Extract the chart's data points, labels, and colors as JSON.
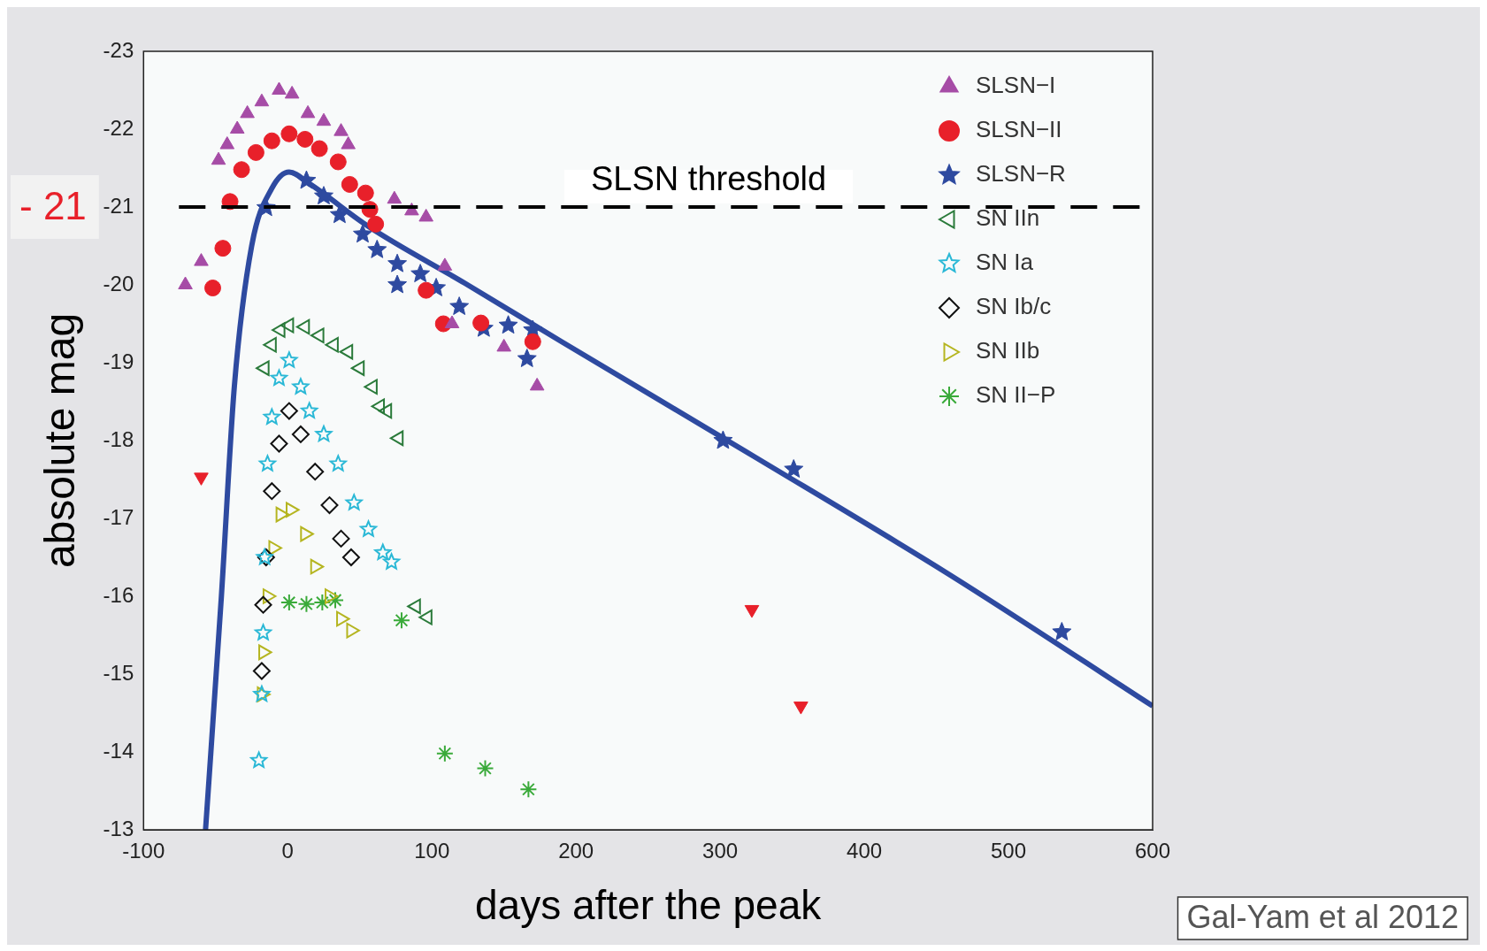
{
  "chart_data": {
    "type": "scatter",
    "xlabel": "days after the peak",
    "ylabel": "absolute mag",
    "xlim": [
      -100,
      600
    ],
    "xticks": [
      -100,
      0,
      100,
      200,
      300,
      400,
      500,
      600
    ],
    "ylim": [
      -13,
      -23
    ],
    "yticks": [
      -23,
      -22,
      -21,
      -20,
      -19,
      -18,
      -17,
      -16,
      -15,
      -14,
      -13
    ],
    "grid": false,
    "legend": "top right",
    "ref_lines": [
      {
        "axis": "y",
        "value": -21,
        "label": "SLSN threshold",
        "color": "#000000",
        "line_style": "dashed"
      }
    ],
    "annotations": [
      "- 21",
      "Gal-Yam et al 2012"
    ],
    "series": [
      {
        "name": "SLSN−I",
        "color": "#a64ca6",
        "marker": "triangle",
        "x": [
          -71,
          -60,
          -48,
          -42,
          -35,
          -28,
          -18,
          -6,
          3,
          14,
          25,
          37,
          42,
          74,
          86,
          96,
          109,
          114,
          150,
          173
        ],
        "values": [
          -20.0,
          -20.3,
          -21.6,
          -21.8,
          -22.0,
          -22.2,
          -22.35,
          -22.5,
          -22.45,
          -22.2,
          -22.1,
          -21.97,
          -21.8,
          -21.1,
          -20.95,
          -20.87,
          -20.24,
          -19.5,
          -19.2,
          -18.7
        ]
      },
      {
        "name": "SLSN−II",
        "color": "#e8202a",
        "marker": "circle",
        "x": [
          -52,
          -45,
          -40,
          -32,
          -22,
          -11,
          1,
          12,
          22,
          35,
          43,
          54,
          57,
          61,
          96,
          108,
          134,
          170
        ],
        "values": [
          -19.96,
          -20.47,
          -21.07,
          -21.48,
          -21.7,
          -21.85,
          -21.94,
          -21.87,
          -21.75,
          -21.58,
          -21.29,
          -21.18,
          -20.97,
          -20.78,
          -19.93,
          -19.5,
          -19.51,
          -19.27
        ]
      },
      {
        "name": "SLSN−R",
        "color": "#2e4aa0",
        "marker": "star",
        "x": [
          -15,
          13,
          25,
          36,
          52,
          62,
          76,
          92,
          76,
          103,
          119,
          136,
          153,
          170,
          166,
          302,
          351,
          537
        ],
        "values": [
          -20.99,
          -21.34,
          -21.14,
          -20.9,
          -20.65,
          -20.45,
          -20.27,
          -20.14,
          -20.0,
          -19.96,
          -19.72,
          -19.44,
          -19.48,
          -19.42,
          -19.05,
          -18.0,
          -17.63,
          -15.54
        ]
      },
      {
        "name": "SN IIn",
        "color": "#2a7a3a",
        "marker": "triangle",
        "x": [
          -16,
          -11,
          -5,
          1,
          12,
          22,
          32,
          42,
          50,
          59,
          64,
          69,
          77,
          89,
          97
        ],
        "values": [
          -18.93,
          -19.23,
          -19.42,
          -19.48,
          -19.46,
          -19.35,
          -19.23,
          -19.14,
          -18.93,
          -18.69,
          -18.44,
          -18.38,
          -18.03,
          -15.87,
          -15.73
        ]
      },
      {
        "name": "SN Ia",
        "color": "#2ab8d6",
        "marker": "star",
        "x": [
          -20,
          -18,
          -17,
          -16,
          -14,
          -11,
          -6,
          1,
          9,
          15,
          25,
          35,
          46,
          56,
          66,
          72
        ],
        "values": [
          -13.89,
          -14.74,
          -15.53,
          -16.5,
          -17.7,
          -18.3,
          -18.8,
          -19.03,
          -18.69,
          -18.38,
          -18.08,
          -17.7,
          -17.2,
          -16.86,
          -16.56,
          -16.44
        ]
      },
      {
        "name": "SN Ib/c",
        "color": "#111111",
        "marker": "diamond",
        "x": [
          -18,
          -17,
          -15,
          -11,
          -6,
          1,
          9,
          19,
          29,
          37,
          44
        ],
        "values": [
          -15.04,
          -15.89,
          -16.5,
          -17.35,
          -17.96,
          -18.38,
          -18.08,
          -17.6,
          -17.17,
          -16.74,
          -16.5
        ]
      },
      {
        "name": "SN IIb",
        "color": "#b5b520",
        "marker": "triangle",
        "x": [
          -18,
          -17,
          -14,
          -10,
          -5,
          2,
          12,
          19,
          29,
          37,
          44
        ],
        "values": [
          -14.74,
          -15.28,
          -16.0,
          -16.62,
          -17.05,
          -17.11,
          -16.8,
          -16.38,
          -16.0,
          -15.71,
          -15.56
        ]
      },
      {
        "name": "SN II−P",
        "color": "#3aaa3a",
        "marker": "cross",
        "x": [
          1,
          13,
          24,
          33,
          79,
          109,
          137,
          167
        ],
        "values": [
          -15.92,
          -15.9,
          -15.92,
          -15.95,
          -15.69,
          -13.98,
          -13.79,
          -13.52
        ]
      },
      {
        "color": "#e8202a",
        "marker": "triangle",
        "x": [
          -60,
          322,
          356
        ],
        "values": [
          -17.53,
          -15.83,
          -14.59
        ]
      },
      {
        "type": "line",
        "color": "#2e4aa0",
        "marker": "none",
        "x": [
          -57,
          -46,
          -37,
          -25,
          -11,
          1,
          15,
          56,
          123,
          190,
          324,
          458,
          600
        ],
        "values": [
          -13.0,
          -16.0,
          -18.7,
          -20.5,
          -21.24,
          -21.45,
          -21.3,
          -20.75,
          -20.02,
          -19.27,
          -17.79,
          -16.29,
          -14.59
        ]
      }
    ]
  }
}
